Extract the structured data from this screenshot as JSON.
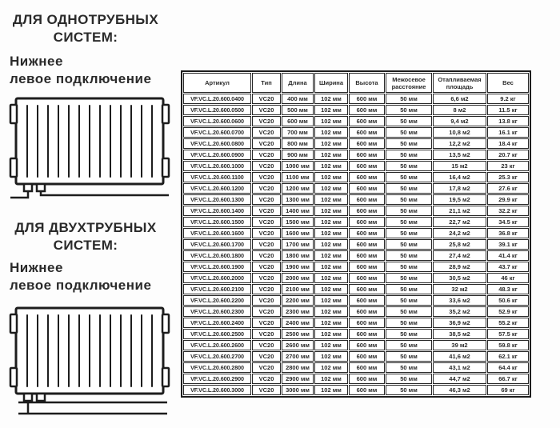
{
  "page": {
    "background": "#fdfdfd",
    "text_color": "#2b2b2b",
    "border_color": "#1d1d1d"
  },
  "left_panel": {
    "sections": [
      {
        "title": "ДЛЯ ОДНОТРУБНЫХ\nСИСТЕМ:",
        "connection": "Нижнее\nлевое подключение",
        "diagram": "radiator-bottom-left-connection-single-pipe"
      },
      {
        "title": "ДЛЯ ДВУХТРУБНЫХ\nСИСТЕМ:",
        "connection": "Нижнее\nлевое подключение",
        "diagram": "radiator-bottom-left-connection-two-pipe"
      }
    ]
  },
  "table": {
    "columns": [
      "Артикул",
      "Тип",
      "Длина",
      "Ширина",
      "Высота",
      "Межосевое расстояние",
      "Отапливаемая площадь",
      "Вес"
    ],
    "rows": [
      [
        "VF.VC.L.20.600.0400",
        "VC20",
        "400 мм",
        "102 мм",
        "600 мм",
        "50 мм",
        "6,6 м2",
        "9.2 кг"
      ],
      [
        "VF.VC.L.20.600.0500",
        "VC20",
        "500 мм",
        "102 мм",
        "600 мм",
        "50 мм",
        "8 м2",
        "11.5 кг"
      ],
      [
        "VF.VC.L.20.600.0600",
        "VC20",
        "600 мм",
        "102 мм",
        "600 мм",
        "50 мм",
        "9,4 м2",
        "13.8 кг"
      ],
      [
        "VF.VC.L.20.600.0700",
        "VC20",
        "700 мм",
        "102 мм",
        "600 мм",
        "50 мм",
        "10,8 м2",
        "16.1 кг"
      ],
      [
        "VF.VC.L.20.600.0800",
        "VC20",
        "800 мм",
        "102 мм",
        "600 мм",
        "50 мм",
        "12,2 м2",
        "18.4 кг"
      ],
      [
        "VF.VC.L.20.600.0900",
        "VC20",
        "900 мм",
        "102 мм",
        "600 мм",
        "50 мм",
        "13,5 м2",
        "20.7 кг"
      ],
      [
        "VF.VC.L.20.600.1000",
        "VC20",
        "1000 мм",
        "102 мм",
        "600 мм",
        "50 мм",
        "15 м2",
        "23 кг"
      ],
      [
        "VF.VC.L.20.600.1100",
        "VC20",
        "1100 мм",
        "102 мм",
        "600 мм",
        "50 мм",
        "16,4 м2",
        "25.3 кг"
      ],
      [
        "VF.VC.L.20.600.1200",
        "VC20",
        "1200 мм",
        "102 мм",
        "600 мм",
        "50 мм",
        "17,8 м2",
        "27.6 кг"
      ],
      [
        "VF.VC.L.20.600.1300",
        "VC20",
        "1300 мм",
        "102 мм",
        "600 мм",
        "50 мм",
        "19,5 м2",
        "29.9 кг"
      ],
      [
        "VF.VC.L.20.600.1400",
        "VC20",
        "1400 мм",
        "102 мм",
        "600 мм",
        "50 мм",
        "21,1 м2",
        "32.2 кг"
      ],
      [
        "VF.VC.L.20.600.1500",
        "VC20",
        "1500 мм",
        "102 мм",
        "600 мм",
        "50 мм",
        "22,7 м2",
        "34.5 кг"
      ],
      [
        "VF.VC.L.20.600.1600",
        "VC20",
        "1600 мм",
        "102 мм",
        "600 мм",
        "50 мм",
        "24,2 м2",
        "36.8 кг"
      ],
      [
        "VF.VC.L.20.600.1700",
        "VC20",
        "1700 мм",
        "102 мм",
        "600 мм",
        "50 мм",
        "25,8 м2",
        "39.1 кг"
      ],
      [
        "VF.VC.L.20.600.1800",
        "VC20",
        "1800 мм",
        "102 мм",
        "600 мм",
        "50 мм",
        "27,4 м2",
        "41.4 кг"
      ],
      [
        "VF.VC.L.20.600.1900",
        "VC20",
        "1900 мм",
        "102 мм",
        "600 мм",
        "50 мм",
        "28,9 м2",
        "43.7 кг"
      ],
      [
        "VF.VC.L.20.600.2000",
        "VC20",
        "2000 мм",
        "102 мм",
        "600 мм",
        "50 мм",
        "30,5 м2",
        "46 кг"
      ],
      [
        "VF.VC.L.20.600.2100",
        "VC20",
        "2100 мм",
        "102 мм",
        "600 мм",
        "50 мм",
        "32 м2",
        "48.3 кг"
      ],
      [
        "VF.VC.L.20.600.2200",
        "VC20",
        "2200 мм",
        "102 мм",
        "600 мм",
        "50 мм",
        "33,6 м2",
        "50.6 кг"
      ],
      [
        "VF.VC.L.20.600.2300",
        "VC20",
        "2300 мм",
        "102 мм",
        "600 мм",
        "50 мм",
        "35,2 м2",
        "52.9 кг"
      ],
      [
        "VF.VC.L.20.600.2400",
        "VC20",
        "2400 мм",
        "102 мм",
        "600 мм",
        "50 мм",
        "36,9 м2",
        "55.2 кг"
      ],
      [
        "VF.VC.L.20.600.2500",
        "VC20",
        "2500 мм",
        "102 мм",
        "600 мм",
        "50 мм",
        "38,5 м2",
        "57.5 кг"
      ],
      [
        "VF.VC.L.20.600.2600",
        "VC20",
        "2600 мм",
        "102 мм",
        "600 мм",
        "50 мм",
        "39 м2",
        "59.8 кг"
      ],
      [
        "VF.VC.L.20.600.2700",
        "VC20",
        "2700 мм",
        "102 мм",
        "600 мм",
        "50 мм",
        "41,6 м2",
        "62.1 кг"
      ],
      [
        "VF.VC.L.20.600.2800",
        "VC20",
        "2800 мм",
        "102 мм",
        "600 мм",
        "50 мм",
        "43,1 м2",
        "64.4 кг"
      ],
      [
        "VF.VC.L.20.600.2900",
        "VC20",
        "2900 мм",
        "102 мм",
        "600 мм",
        "50 мм",
        "44,7 м2",
        "66.7 кг"
      ],
      [
        "VF.VC.L.20.600.3000",
        "VC20",
        "3000 мм",
        "102 мм",
        "600 мм",
        "50 мм",
        "46,3 м2",
        "69 кг"
      ]
    ]
  }
}
